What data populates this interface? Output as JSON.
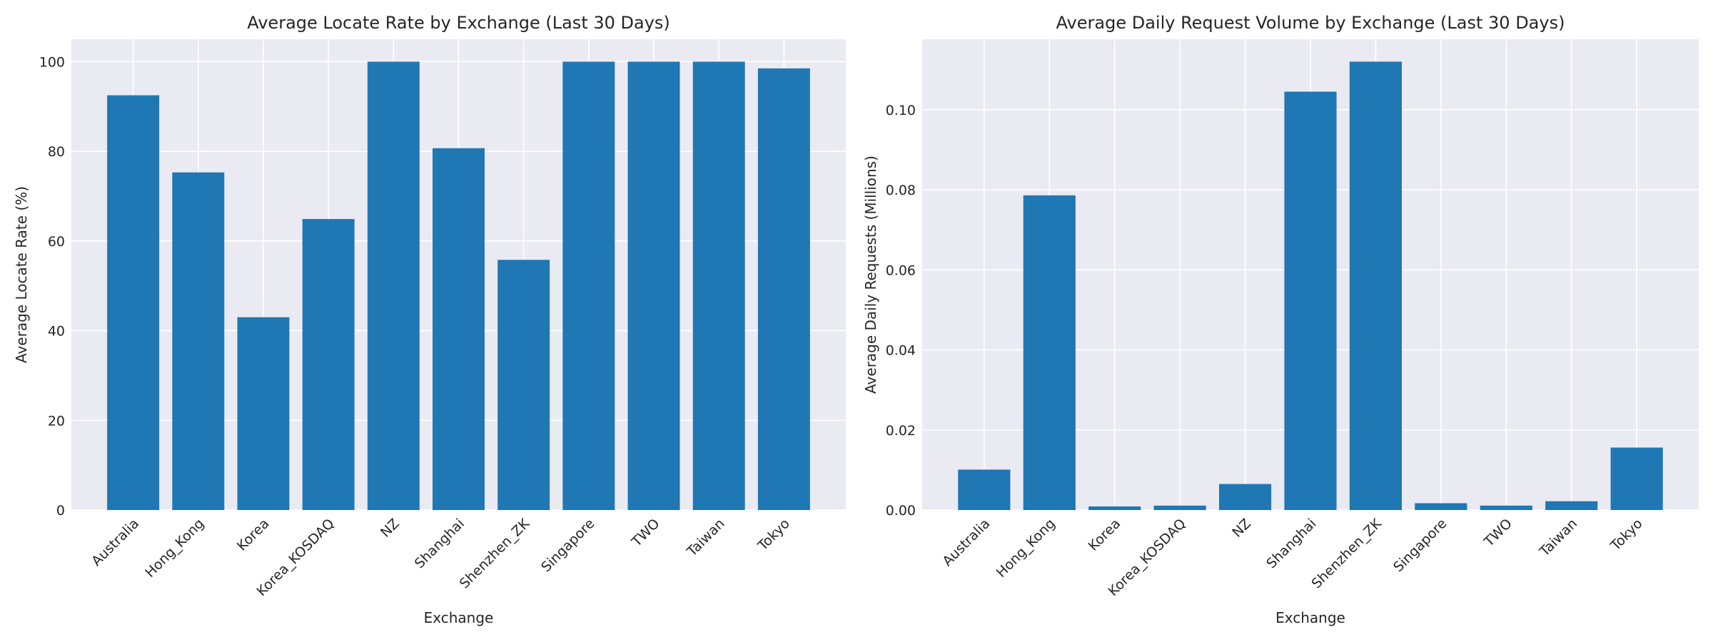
{
  "chart_data": [
    {
      "type": "bar",
      "title": "Average Locate Rate by Exchange (Last 30 Days)",
      "xlabel": "Exchange",
      "ylabel": "Average Locate Rate (%)",
      "categories": [
        "Australia",
        "Hong_Kong",
        "Korea",
        "Korea_KOSDAQ",
        "NZ",
        "Shanghai",
        "Shenzhen_ZK",
        "Singapore",
        "TWO",
        "Taiwan",
        "Tokyo"
      ],
      "values": [
        92.5,
        75.3,
        43.0,
        64.9,
        100.0,
        80.7,
        55.8,
        100.0,
        100.0,
        100.0,
        98.5
      ],
      "ylim": [
        0,
        105
      ],
      "yticks": [
        0,
        20,
        40,
        60,
        80,
        100
      ],
      "ytick_labels": [
        "0",
        "20",
        "40",
        "60",
        "80",
        "100"
      ],
      "grid": true,
      "color": "#1f77b4",
      "background": "#eaeaf2"
    },
    {
      "type": "bar",
      "title": "Average Daily Request Volume by Exchange (Last 30 Days)",
      "xlabel": "Exchange",
      "ylabel": "Average Daily Requests (Millions)",
      "categories": [
        "Australia",
        "Hong_Kong",
        "Korea",
        "Korea_KOSDAQ",
        "NZ",
        "Shanghai",
        "Shenzhen_ZK",
        "Singapore",
        "TWO",
        "Taiwan",
        "Tokyo"
      ],
      "values": [
        0.0101,
        0.0786,
        0.0009,
        0.0011,
        0.0065,
        0.1045,
        0.112,
        0.0017,
        0.0011,
        0.0022,
        0.0156
      ],
      "ylim": [
        0,
        0.1176
      ],
      "yticks": [
        0,
        0.02,
        0.04,
        0.06,
        0.08,
        0.1
      ],
      "ytick_labels": [
        "0.00",
        "0.02",
        "0.04",
        "0.06",
        "0.08",
        "0.10"
      ],
      "grid": true,
      "color": "#1f77b4",
      "background": "#eaeaf2"
    }
  ]
}
